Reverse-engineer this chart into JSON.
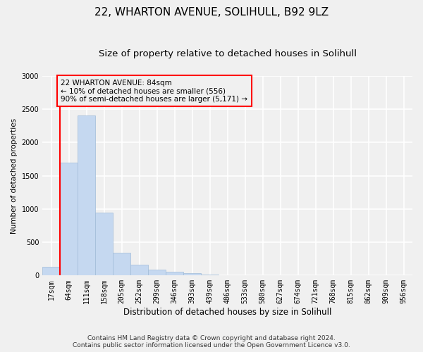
{
  "title1": "22, WHARTON AVENUE, SOLIHULL, B92 9LZ",
  "title2": "Size of property relative to detached houses in Solihull",
  "xlabel": "Distribution of detached houses by size in Solihull",
  "ylabel": "Number of detached properties",
  "categories": [
    "17sqm",
    "64sqm",
    "111sqm",
    "158sqm",
    "205sqm",
    "252sqm",
    "299sqm",
    "346sqm",
    "393sqm",
    "439sqm",
    "486sqm",
    "533sqm",
    "580sqm",
    "627sqm",
    "674sqm",
    "721sqm",
    "768sqm",
    "815sqm",
    "862sqm",
    "909sqm",
    "956sqm"
  ],
  "values": [
    130,
    1700,
    2400,
    940,
    340,
    160,
    90,
    60,
    30,
    10,
    5,
    5,
    5,
    3,
    3,
    3,
    3,
    3,
    3,
    3,
    3
  ],
  "bar_color": "#c5d8f0",
  "bar_edge_color": "#a0bcd8",
  "vline_color": "red",
  "annotation_text": "22 WHARTON AVENUE: 84sqm\n← 10% of detached houses are smaller (556)\n90% of semi-detached houses are larger (5,171) →",
  "annotation_box_color": "red",
  "ylim": [
    0,
    3000
  ],
  "yticks": [
    0,
    500,
    1000,
    1500,
    2000,
    2500,
    3000
  ],
  "footer1": "Contains HM Land Registry data © Crown copyright and database right 2024.",
  "footer2": "Contains public sector information licensed under the Open Government Licence v3.0.",
  "bg_color": "#f0f0f0",
  "grid_color": "#ffffff",
  "title1_fontsize": 11,
  "title2_fontsize": 9.5,
  "xlabel_fontsize": 8.5,
  "ylabel_fontsize": 7.5,
  "tick_fontsize": 7,
  "footer_fontsize": 6.5,
  "annot_fontsize": 7.5
}
